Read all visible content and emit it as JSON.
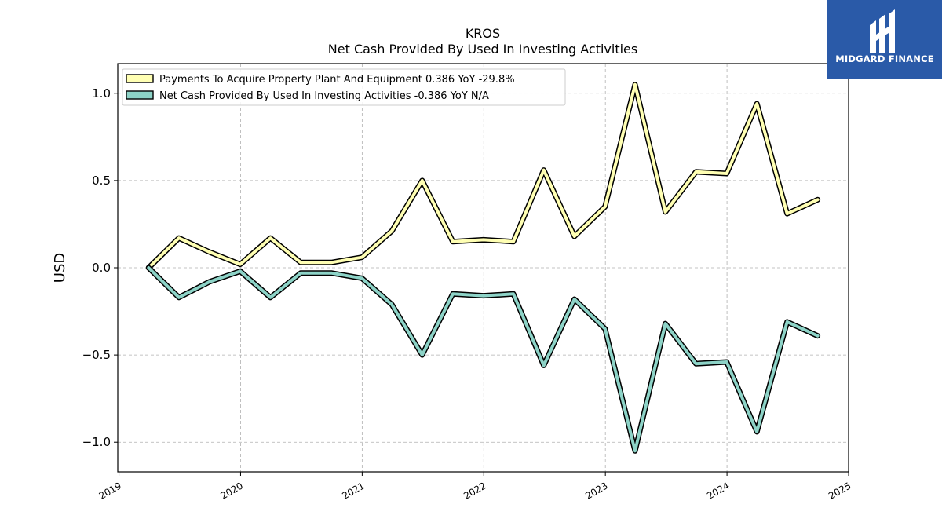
{
  "header": {
    "title": "KROS",
    "subtitle": "Net Cash Provided By Used In Investing Activities"
  },
  "logo": {
    "text": "MIDGARD FINANCE",
    "color": "#2a5aa8"
  },
  "chart_data": {
    "type": "line",
    "ylabel": "USD",
    "xlim": [
      2018.99,
      2025.0
    ],
    "ylim": [
      -1.17,
      1.17
    ],
    "yticks": [
      1.0,
      0.5,
      0.0,
      -0.5,
      -1.0
    ],
    "ytick_labels": [
      "1.0",
      "0.5",
      "0.0",
      "−0.5",
      "−1.0"
    ],
    "xticks": [
      2019,
      2020,
      2021,
      2022,
      2023,
      2024,
      2025
    ],
    "xtick_labels": [
      "2019",
      "2020",
      "2021",
      "2022",
      "2023",
      "2024",
      "2025"
    ],
    "grid": true,
    "legend_position": "top-left",
    "x": [
      "2019-03-31",
      "2019-06-30",
      "2019-09-30",
      "2019-12-31",
      "2020-03-31",
      "2020-06-30",
      "2020-09-30",
      "2020-12-31",
      "2021-03-31",
      "2021-06-30",
      "2021-09-30",
      "2021-12-31",
      "2022-03-31",
      "2022-06-30",
      "2022-09-30",
      "2022-12-31",
      "2023-03-31",
      "2023-06-30",
      "2023-09-30",
      "2023-12-31",
      "2024-03-31",
      "2024-06-30",
      "2024-09-30"
    ],
    "series": [
      {
        "name": "Payments To Acquire Property Plant And Equipment  0.386 YoY -29.8%",
        "color": "#ffffb3",
        "values": [
          0.0,
          0.17,
          0.09,
          0.02,
          0.17,
          0.03,
          0.03,
          0.06,
          0.21,
          0.5,
          0.15,
          0.16,
          0.15,
          0.56,
          0.18,
          0.35,
          1.05,
          0.32,
          0.55,
          0.54,
          0.94,
          0.31,
          0.39
        ]
      },
      {
        "name": "Net Cash Provided By Used In Investing Activities  -0.386 YoY N/A",
        "color": "#8dd3c7",
        "values": [
          0.0,
          -0.17,
          -0.08,
          -0.02,
          -0.17,
          -0.03,
          -0.03,
          -0.06,
          -0.21,
          -0.5,
          -0.15,
          -0.16,
          -0.15,
          -0.56,
          -0.18,
          -0.35,
          -1.05,
          -0.32,
          -0.55,
          -0.54,
          -0.94,
          -0.31,
          -0.39
        ]
      }
    ]
  }
}
